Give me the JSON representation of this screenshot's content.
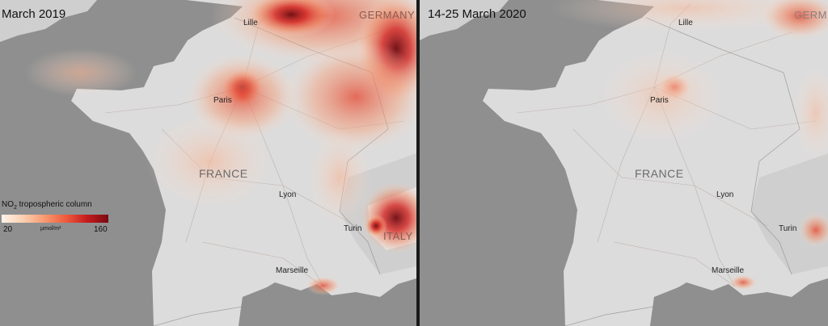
{
  "panels": {
    "left": {
      "title": "March 2019",
      "labels": {
        "lille": "Lille",
        "germany": "GERMANY",
        "paris": "Paris",
        "france": "FRANCE",
        "lyon": "Lyon",
        "turin": "Turin",
        "italy": "ITALY",
        "marseille": "Marseille"
      }
    },
    "right": {
      "title": "14-25 March 2020",
      "labels": {
        "lille": "Lille",
        "germany": "GERM",
        "paris": "Paris",
        "france": "FRANCE",
        "lyon": "Lyon",
        "turin": "Turin",
        "marseille": "Marseille"
      }
    }
  },
  "legend": {
    "title": "NO",
    "title_sub": "2",
    "title_rest": " tropospheric column",
    "min": "20",
    "unit": "µmol/m²",
    "max": "160",
    "colors": [
      "#fff3ea",
      "#fcd0b2",
      "#f79a72",
      "#ee5b3d",
      "#c51c1e",
      "#7a0a12"
    ]
  },
  "colors": {
    "sea": "#8f8f8f",
    "land": "#dcdcdc",
    "divider": "#1a1a1a"
  }
}
